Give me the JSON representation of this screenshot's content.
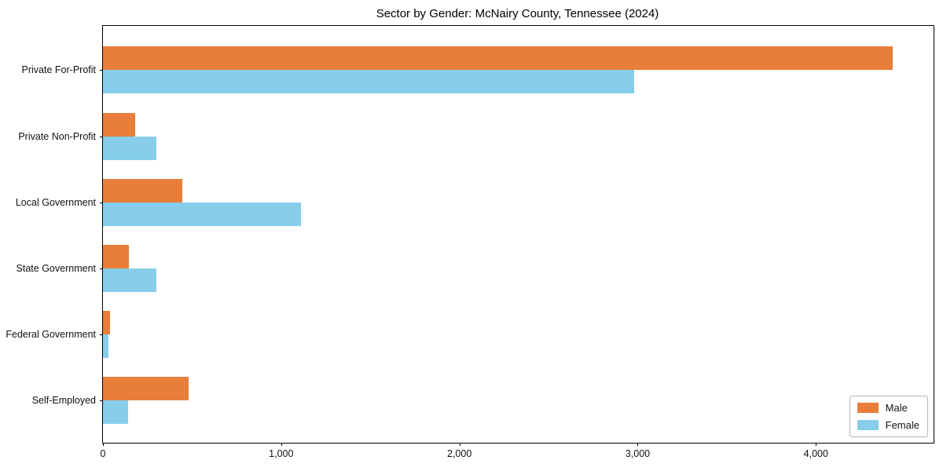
{
  "chart_data": {
    "type": "bar",
    "orientation": "horizontal",
    "title": "Sector by Gender: McNairy County, Tennessee (2024)",
    "categories": [
      "Private For-Profit",
      "Private Non-Profit",
      "Local Government",
      "State Government",
      "Federal Government",
      "Self-Employed"
    ],
    "series": [
      {
        "name": "Male",
        "color": "#e87e3a",
        "values": [
          4430,
          180,
          445,
          145,
          40,
          480
        ]
      },
      {
        "name": "Female",
        "color": "#87ceeb",
        "values": [
          2980,
          300,
          1110,
          300,
          30,
          140
        ]
      }
    ],
    "xlabel": "",
    "ylabel": "",
    "xlim": [
      0,
      4660
    ],
    "xticks": [
      0,
      1000,
      2000,
      3000,
      4000
    ],
    "xtick_labels": [
      "0",
      "1,000",
      "2,000",
      "3,000",
      "4,000"
    ],
    "grid": false,
    "legend_position": "lower-right",
    "background_color": "#ffffff",
    "spine_color": "#000000"
  }
}
